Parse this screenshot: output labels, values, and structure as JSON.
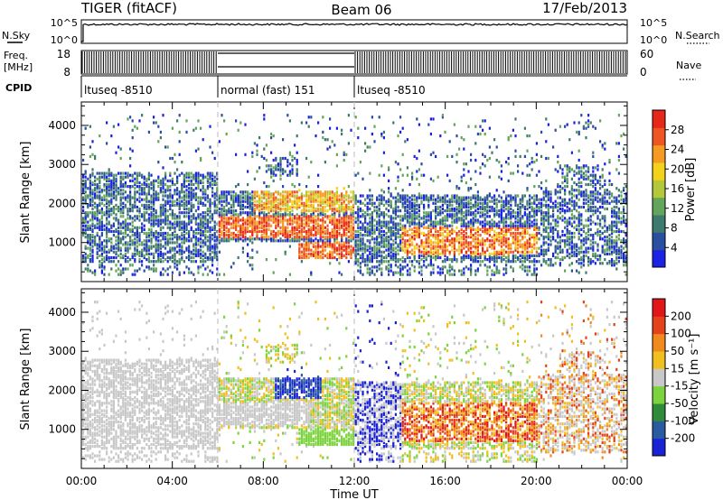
{
  "header": {
    "station": "TIGER (fitACF)",
    "beam": "Beam 06",
    "date": "17/Feb/2013"
  },
  "top_panels": {
    "nsky_label": "N.Sky",
    "nsky_ticks": [
      "10^5",
      "10^0"
    ],
    "nsky_right_ticks": [
      "10^5",
      "10^0"
    ],
    "nsearch_label": "N.Search",
    "freq_label": "Freq.",
    "freq_unit": "[MHz]",
    "freq_ticks": [
      "18",
      "8"
    ],
    "nave_ticks": [
      "60",
      "0"
    ],
    "nave_label": "Nave",
    "cpid_label": "CPID",
    "cpid_segments": [
      {
        "label": "ltuseq -8510",
        "start_hour": 0,
        "end_hour": 6
      },
      {
        "label": "normal (fast) 151",
        "start_hour": 6,
        "end_hour": 12
      },
      {
        "label": "ltuseq -8510",
        "start_hour": 12,
        "end_hour": 24
      }
    ]
  },
  "chart_data": [
    {
      "type": "heatmap",
      "name": "power",
      "ylabel": "Slant Range [km]",
      "y_ticks": [
        "1000",
        "2000",
        "3000",
        "4000"
      ],
      "ylim": [
        0,
        4600
      ],
      "x_ticks": [
        "00:00",
        "04:00",
        "08:00",
        "12:00",
        "16:00",
        "20:00",
        "00:00"
      ],
      "xlim_hours": [
        0,
        24
      ],
      "colorbar": {
        "label": "Power [dB]",
        "ticks": [
          "4",
          "8",
          "12",
          "16",
          "20",
          "24",
          "28"
        ],
        "colors": [
          "#1b22e4",
          "#2a4fa0",
          "#3f7a6e",
          "#63a55a",
          "#b3c93a",
          "#f2d21b",
          "#f59a22",
          "#ef5520",
          "#e5281a"
        ]
      }
    },
    {
      "type": "heatmap",
      "name": "velocity",
      "ylabel": "Slant Range [km]",
      "y_ticks": [
        "1000",
        "2000",
        "3000",
        "4000"
      ],
      "ylim": [
        0,
        4600
      ],
      "x_ticks": [
        "00:00",
        "04:00",
        "08:00",
        "12:00",
        "16:00",
        "20:00",
        "00:00"
      ],
      "xlabel": "Time UT",
      "xlim_hours": [
        0,
        24
      ],
      "colorbar": {
        "label": "Velocity [m s⁻¹]",
        "ticks": [
          "200",
          "100",
          "50",
          "15",
          "-15",
          "-50",
          "-100",
          "-200"
        ],
        "colors": [
          "#1a22d6",
          "#2a5aa0",
          "#2f8a3a",
          "#7cd33e",
          "#c8c8c8",
          "#f0c020",
          "#f08a1e",
          "#e4421b",
          "#e0161b"
        ]
      }
    }
  ]
}
